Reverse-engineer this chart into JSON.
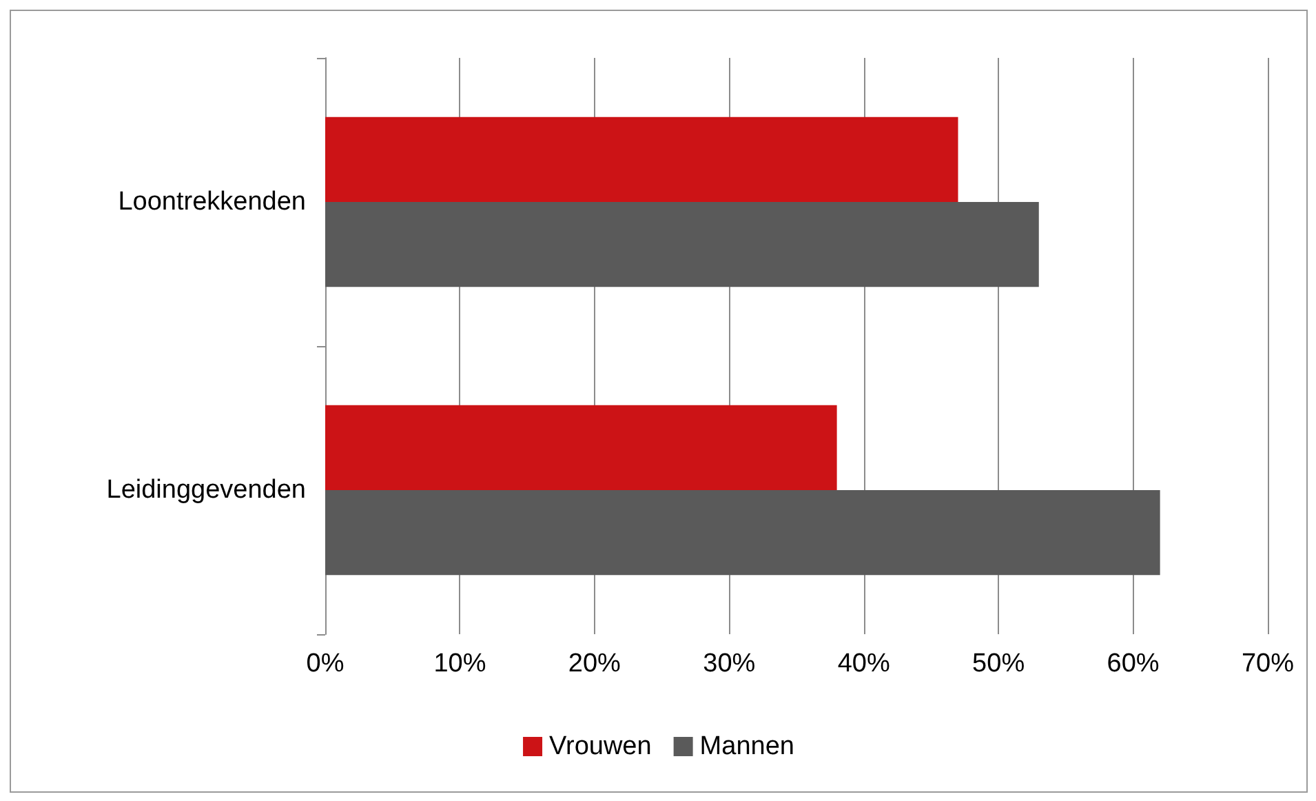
{
  "chart_data": {
    "type": "bar",
    "orientation": "horizontal",
    "categories": [
      "Loontrekkenden",
      "Leidinggevenden"
    ],
    "series": [
      {
        "name": "Vrouwen",
        "color": "#cc1316",
        "values": [
          47,
          38
        ]
      },
      {
        "name": "Mannen",
        "color": "#5a5a5a",
        "values": [
          53,
          62
        ]
      }
    ],
    "xlim": [
      0,
      70
    ],
    "xticks": [
      {
        "value": 0,
        "label": "0%"
      },
      {
        "value": 10,
        "label": "10%"
      },
      {
        "value": 20,
        "label": "20%"
      },
      {
        "value": 30,
        "label": "30%"
      },
      {
        "value": 40,
        "label": "40%"
      },
      {
        "value": 50,
        "label": "50%"
      },
      {
        "value": 60,
        "label": "60%"
      },
      {
        "value": 70,
        "label": "70%"
      }
    ],
    "grid": "x",
    "legend": "bottom"
  }
}
